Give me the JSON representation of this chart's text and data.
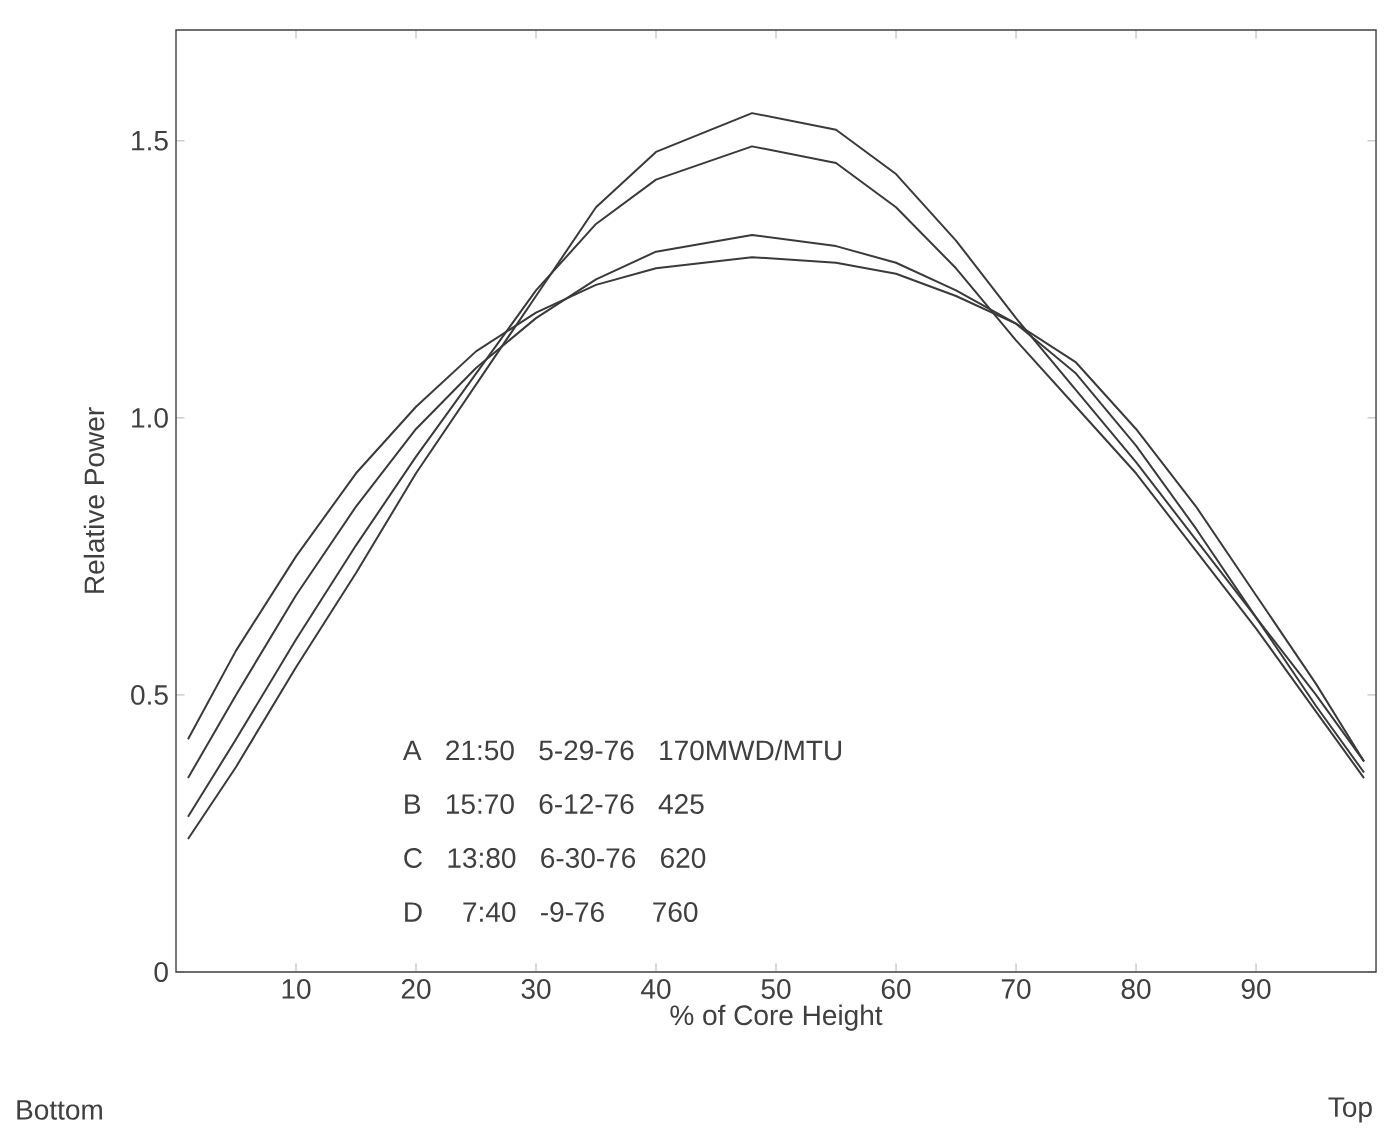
{
  "chart_data": {
    "type": "line",
    "xlabel": "% of Core Height",
    "ylabel": "Relative Power",
    "x": [
      1,
      5,
      10,
      15,
      20,
      25,
      30,
      35,
      40,
      48,
      55,
      60,
      65,
      70,
      75,
      80,
      85,
      90,
      95,
      99
    ],
    "series": [
      {
        "color": "#3a3a3a",
        "values": [
          0.42,
          0.58,
          0.75,
          0.9,
          1.02,
          1.12,
          1.19,
          1.24,
          1.27,
          1.29,
          1.28,
          1.26,
          1.22,
          1.17,
          1.1,
          0.98,
          0.84,
          0.68,
          0.52,
          0.38
        ]
      },
      {
        "color": "#3a3a3a",
        "values": [
          0.35,
          0.5,
          0.68,
          0.84,
          0.98,
          1.09,
          1.18,
          1.25,
          1.3,
          1.33,
          1.31,
          1.28,
          1.23,
          1.17,
          1.08,
          0.95,
          0.8,
          0.64,
          0.48,
          0.36
        ]
      },
      {
        "color": "#3a3a3a",
        "values": [
          0.28,
          0.42,
          0.6,
          0.77,
          0.93,
          1.08,
          1.23,
          1.35,
          1.43,
          1.49,
          1.46,
          1.38,
          1.27,
          1.14,
          1.02,
          0.9,
          0.76,
          0.62,
          0.47,
          0.35
        ]
      },
      {
        "color": "#3a3a3a",
        "values": [
          0.24,
          0.37,
          0.55,
          0.72,
          0.9,
          1.06,
          1.22,
          1.38,
          1.48,
          1.55,
          1.52,
          1.44,
          1.32,
          1.18,
          1.05,
          0.92,
          0.78,
          0.64,
          0.5,
          0.38
        ]
      }
    ],
    "xlim": [
      0,
      100
    ],
    "ylim": [
      0,
      1.7
    ],
    "xticks": [
      10,
      20,
      30,
      40,
      50,
      60,
      70,
      80,
      90
    ],
    "yticks": [
      0,
      {
        "value": 0.5,
        "label": "0.5"
      },
      {
        "value": 1.0,
        "label": "1.0"
      },
      1.5
    ],
    "marker": "none",
    "line_style": "solid",
    "annotations": [
      "A   21:50   5-29-76   170MWD/MTU",
      "B   15:70   6-12-76   425",
      "C   13:80   6-30-76   620",
      "D     7:40   -9-76      760",
      "Bottom",
      "Top"
    ]
  }
}
